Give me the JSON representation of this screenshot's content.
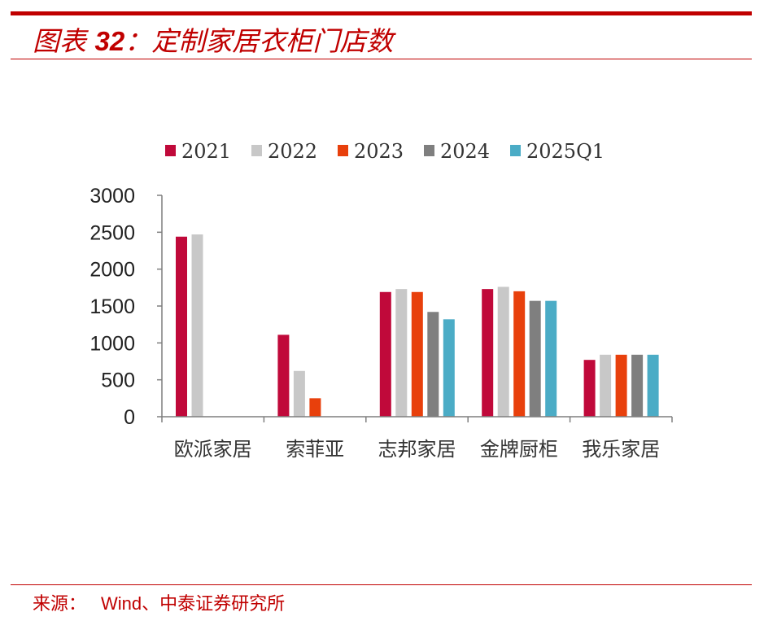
{
  "header": {
    "prefix": "图表",
    "number": "32",
    "separator": "：",
    "title": "定制家居衣柜门店数"
  },
  "footer": {
    "label": "来源：",
    "text": "Wind、中泰证券研究所"
  },
  "colors": {
    "accent": "#c00000"
  },
  "chart_data": {
    "type": "bar",
    "categories": [
      "欧派家居",
      "索菲亚",
      "志邦家居",
      "金牌厨柜",
      "我乐家居"
    ],
    "series": [
      {
        "name": "2021",
        "color": "#c0093a",
        "values": [
          2440,
          1110,
          1690,
          1730,
          770
        ]
      },
      {
        "name": "2022",
        "color": "#c8c8c8",
        "values": [
          2470,
          620,
          1730,
          1760,
          840
        ]
      },
      {
        "name": "2023",
        "color": "#e8400c",
        "values": [
          null,
          250,
          1690,
          1700,
          840
        ]
      },
      {
        "name": "2024",
        "color": "#7f7f7f",
        "values": [
          null,
          null,
          1420,
          1570,
          840
        ]
      },
      {
        "name": "2025Q1",
        "color": "#4bacc6",
        "values": [
          null,
          null,
          1320,
          1570,
          840
        ]
      }
    ],
    "yticks": [
      0,
      500,
      1000,
      1500,
      2000,
      2500,
      3000
    ],
    "ylim": [
      0,
      3000
    ],
    "legend_position": "top",
    "grid": false
  }
}
